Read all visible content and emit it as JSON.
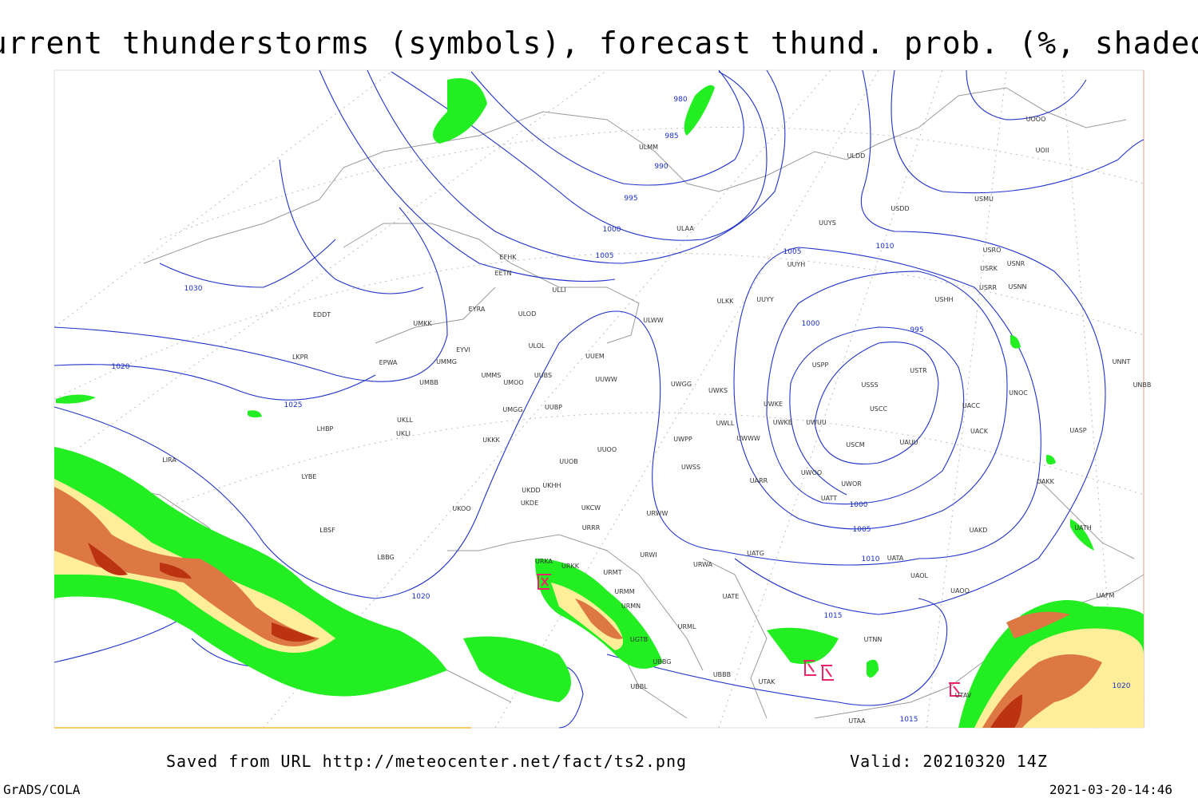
{
  "title": "Current thunderstorms (symbols), forecast thund. prob. (%, shaded)",
  "footer": {
    "source": "Saved from URL http://meteocenter.net/fact/ts2.png",
    "valid": "Valid: 20210320 14Z",
    "software": "GrADS/COLA",
    "timestamp": "2021-03-20-14:46"
  },
  "stations": [
    "ULMM",
    "ULDD",
    "UOOO",
    "UOII",
    "USDD",
    "USMU",
    "ULAA",
    "UUYS",
    "USRO",
    "USNR",
    "USRK",
    "UUYH",
    "EFHK",
    "EETN",
    "ULLI",
    "USRR",
    "USNN",
    "ULKK",
    "UUYY",
    "USHH",
    "EYRA",
    "ULOD",
    "EDDT",
    "UMKK",
    "ULWW",
    "ULOL",
    "EYVI",
    "UUEM",
    "EPWA",
    "UMMG",
    "LKPR",
    "USPP",
    "USTR",
    "UMMS",
    "UUBS",
    "UMOO",
    "UUWW",
    "UWGG",
    "UWKS",
    "USSS",
    "UNNT",
    "UNBB",
    "UNOC",
    "UMBB",
    "UMGG",
    "UUBP",
    "UWKE",
    "USCC",
    "UACC",
    "UKLL",
    "UWKB",
    "UWUU",
    "UWLL",
    "LHBP",
    "UKLI",
    "UACK",
    "UASP",
    "UKKK",
    "UWWW",
    "UWPP",
    "USCM",
    "UAUU",
    "UUOO",
    "UUOB",
    "LIRA",
    "UWSS",
    "LYBE",
    "UARR",
    "UWOO",
    "UWOR",
    "UAKK",
    "UKDD",
    "UKHH",
    "UKDE",
    "UKOO",
    "UKCW",
    "URWW",
    "UATT",
    "LBSF",
    "URRR",
    "UAKD",
    "UATH",
    "LBBG",
    "URKA",
    "URKK",
    "URWI",
    "UATG",
    "UATA",
    "URWA",
    "URMT",
    "UAOL",
    "UAOO",
    "URMM",
    "UAFM",
    "URMN",
    "UATE",
    "URML",
    "UGTB",
    "UTNN",
    "UBBG",
    "UBBB",
    "UBBL",
    "UTAK",
    "UTAV",
    "UTAA"
  ],
  "isobar_labels": [
    980,
    985,
    990,
    995,
    1000,
    1005,
    1030,
    1020,
    1025,
    1020,
    1005,
    1010,
    1000,
    995,
    1000,
    1005,
    1010,
    1015,
    1015,
    1020
  ]
}
